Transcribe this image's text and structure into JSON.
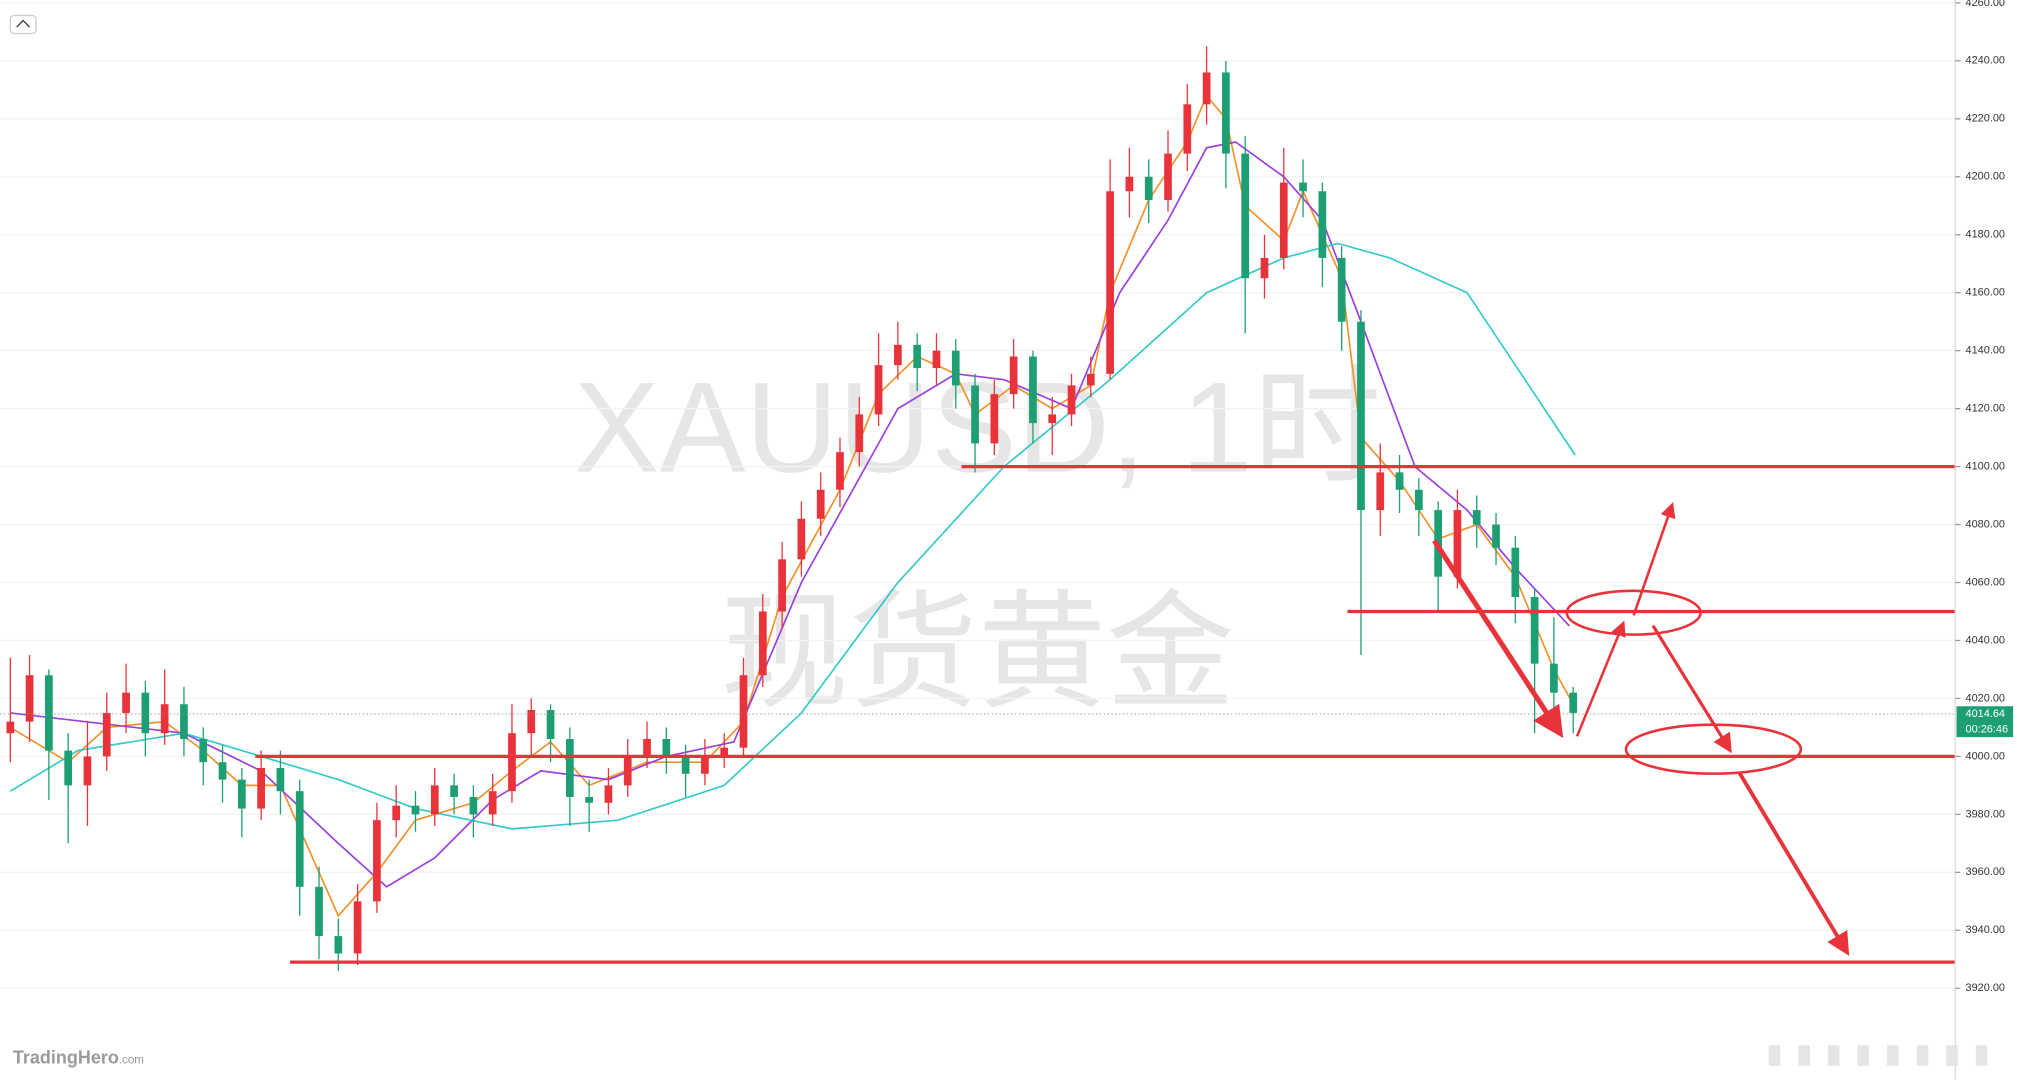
{
  "chart_data": {
    "type": "candlestick",
    "symbol": "XAUUSD, 1时",
    "subtitle": "现货黄金",
    "brand": "TradingHero",
    "brand_suffix": ".com",
    "last_price": 4014.64,
    "countdown": "00:26:46",
    "up_color": "#e8333a",
    "down_color": "#1e9e74",
    "ylim": [
      3899,
      4261
    ],
    "yticks": [
      {
        "value": 3920,
        "label": "3920.00"
      },
      {
        "value": 3940,
        "label": "3940.00"
      },
      {
        "value": 3960,
        "label": "3960.00"
      },
      {
        "value": 3980,
        "label": "3980.00"
      },
      {
        "value": 4000,
        "label": "4000.00"
      },
      {
        "value": 4020,
        "label": "4020.00"
      },
      {
        "value": 4040,
        "label": "4040.00"
      },
      {
        "value": 4060,
        "label": "4060.00"
      },
      {
        "value": 4080,
        "label": "4080.00"
      },
      {
        "value": 4100,
        "label": "4100.00"
      },
      {
        "value": 4120,
        "label": "4120.00"
      },
      {
        "value": 4140,
        "label": "4140.00"
      },
      {
        "value": 4160,
        "label": "4160.00"
      },
      {
        "value": 4180,
        "label": "4180.00"
      },
      {
        "value": 4200,
        "label": "4200.00"
      },
      {
        "value": 4220,
        "label": "4220.00"
      },
      {
        "value": 4240,
        "label": "4240.00"
      },
      {
        "value": 4260,
        "label": "4260.00"
      }
    ],
    "candles": [
      [
        4008,
        4034,
        3998,
        4012
      ],
      [
        4012,
        4035,
        4005,
        4028
      ],
      [
        4028,
        4030,
        3985,
        4002
      ],
      [
        4002,
        4008,
        3970,
        3990
      ],
      [
        3990,
        4012,
        3976,
        4000
      ],
      [
        4000,
        4022,
        3995,
        4015
      ],
      [
        4015,
        4032,
        4008,
        4022
      ],
      [
        4022,
        4026,
        4000,
        4008
      ],
      [
        4008,
        4030,
        4004,
        4018
      ],
      [
        4018,
        4024,
        4000,
        4006
      ],
      [
        4006,
        4010,
        3990,
        3998
      ],
      [
        3998,
        4004,
        3984,
        3992
      ],
      [
        3992,
        3996,
        3972,
        3982
      ],
      [
        3982,
        4002,
        3978,
        3996
      ],
      [
        3996,
        4002,
        3980,
        3988
      ],
      [
        3988,
        3992,
        3945,
        3955
      ],
      [
        3955,
        3962,
        3930,
        3938
      ],
      [
        3938,
        3944,
        3926,
        3932
      ],
      [
        3932,
        3956,
        3928,
        3950
      ],
      [
        3950,
        3984,
        3946,
        3978
      ],
      [
        3978,
        3990,
        3972,
        3983
      ],
      [
        3983,
        3988,
        3974,
        3980
      ],
      [
        3980,
        3996,
        3976,
        3990
      ],
      [
        3990,
        3994,
        3980,
        3986
      ],
      [
        3986,
        3990,
        3972,
        3980
      ],
      [
        3980,
        3994,
        3976,
        3988
      ],
      [
        3988,
        4018,
        3984,
        4008
      ],
      [
        4008,
        4020,
        4000,
        4016
      ],
      [
        4016,
        4018,
        3998,
        4006
      ],
      [
        4006,
        4010,
        3976,
        3986
      ],
      [
        3986,
        3992,
        3974,
        3984
      ],
      [
        3984,
        3996,
        3980,
        3990
      ],
      [
        3990,
        4006,
        3986,
        4000
      ],
      [
        4000,
        4012,
        3996,
        4006
      ],
      [
        4006,
        4010,
        3994,
        4000
      ],
      [
        4000,
        4004,
        3986,
        3994
      ],
      [
        3994,
        4006,
        3990,
        4000
      ],
      [
        4000,
        4008,
        3996,
        4003
      ],
      [
        4003,
        4034,
        4000,
        4028
      ],
      [
        4028,
        4056,
        4024,
        4050
      ],
      [
        4050,
        4074,
        4044,
        4068
      ],
      [
        4068,
        4088,
        4062,
        4082
      ],
      [
        4082,
        4098,
        4076,
        4092
      ],
      [
        4092,
        4110,
        4086,
        4105
      ],
      [
        4105,
        4124,
        4100,
        4118
      ],
      [
        4118,
        4146,
        4114,
        4135
      ],
      [
        4135,
        4150,
        4130,
        4142
      ],
      [
        4142,
        4146,
        4126,
        4134
      ],
      [
        4134,
        4146,
        4128,
        4140
      ],
      [
        4140,
        4144,
        4120,
        4128
      ],
      [
        4128,
        4132,
        4098,
        4108
      ],
      [
        4108,
        4130,
        4104,
        4125
      ],
      [
        4125,
        4144,
        4120,
        4138
      ],
      [
        4138,
        4140,
        4108,
        4115
      ],
      [
        4115,
        4124,
        4104,
        4118
      ],
      [
        4118,
        4132,
        4114,
        4128
      ],
      [
        4128,
        4138,
        4124,
        4132
      ],
      [
        4132,
        4206,
        4130,
        4195
      ],
      [
        4195,
        4210,
        4186,
        4200
      ],
      [
        4200,
        4206,
        4184,
        4192
      ],
      [
        4192,
        4216,
        4188,
        4208
      ],
      [
        4208,
        4232,
        4202,
        4225
      ],
      [
        4225,
        4245,
        4218,
        4236
      ],
      [
        4236,
        4240,
        4196,
        4208
      ],
      [
        4208,
        4214,
        4146,
        4165
      ],
      [
        4165,
        4180,
        4158,
        4172
      ],
      [
        4172,
        4210,
        4168,
        4198
      ],
      [
        4198,
        4206,
        4186,
        4195
      ],
      [
        4195,
        4198,
        4162,
        4172
      ],
      [
        4172,
        4176,
        4140,
        4150
      ],
      [
        4150,
        4154,
        4035,
        4085
      ],
      [
        4085,
        4108,
        4076,
        4098
      ],
      [
        4098,
        4104,
        4084,
        4092
      ],
      [
        4092,
        4096,
        4076,
        4085
      ],
      [
        4085,
        4088,
        4050,
        4062
      ],
      [
        4062,
        4092,
        4058,
        4085
      ],
      [
        4085,
        4090,
        4072,
        4080
      ],
      [
        4080,
        4084,
        4066,
        4072
      ],
      [
        4072,
        4076,
        4046,
        4055
      ],
      [
        4055,
        4058,
        4008,
        4032
      ],
      [
        4032,
        4048,
        4010,
        4022
      ],
      [
        4022,
        4024,
        4008,
        4015
      ]
    ],
    "lines": [
      {
        "color": "#f0922b",
        "x": [
          0,
          3,
          5,
          8,
          10,
          12,
          14,
          15,
          17,
          19,
          21,
          24,
          26,
          28,
          30,
          33,
          36,
          38,
          40,
          43,
          45,
          47,
          49,
          50,
          52,
          54,
          56,
          57,
          59,
          61,
          62,
          63,
          64,
          66,
          67,
          69,
          70,
          72,
          74,
          76,
          78,
          80,
          81
        ],
        "values": [
          4010,
          3998,
          4010,
          4012,
          4002,
          3990,
          3990,
          3975,
          3945,
          3960,
          3978,
          3984,
          3995,
          4005,
          3990,
          3998,
          3998,
          4012,
          4055,
          4092,
          4125,
          4138,
          4132,
          4118,
          4128,
          4120,
          4128,
          4160,
          4192,
          4212,
          4228,
          4220,
          4190,
          4178,
          4195,
          4165,
          4110,
          4095,
          4075,
          4080,
          4062,
          4030,
          4018
        ]
      },
      {
        "color": "#9b3fe0",
        "x": [
          0,
          9,
          13,
          17,
          19.5,
          22,
          25,
          27.5,
          31,
          34,
          37.5,
          41,
          43.5,
          46,
          49,
          51.5,
          55,
          57.5,
          60,
          62,
          63.5,
          66,
          68,
          70,
          72.8,
          75.5,
          78,
          80.8
        ],
        "values": [
          4015,
          4008,
          3995,
          3970,
          3955,
          3965,
          3985,
          3995,
          3992,
          4000,
          4005,
          4060,
          4090,
          4120,
          4132,
          4130,
          4120,
          4160,
          4185,
          4210,
          4212,
          4200,
          4185,
          4150,
          4100,
          4085,
          4065,
          4045
        ]
      },
      {
        "color": "#35c9c9",
        "x": [
          0,
          3.5,
          9,
          13,
          17,
          21,
          26,
          31.5,
          37,
          41,
          46,
          51.5,
          57,
          62,
          66,
          68.8,
          71.5,
          75.5,
          78,
          81.1
        ],
        "values": [
          3988,
          4002,
          4008,
          4000,
          3992,
          3982,
          3975,
          3978,
          3990,
          4015,
          4060,
          4100,
          4130,
          4160,
          4172,
          4177,
          4172,
          4160,
          4135,
          4104
        ]
      }
    ],
    "levels": [
      {
        "value": 4100,
        "start": 49.3
      },
      {
        "value": 4050,
        "start": 69.3
      },
      {
        "value": 4000,
        "start": 12.7
      },
      {
        "value": 3929,
        "start": 14.5
      }
    ]
  }
}
